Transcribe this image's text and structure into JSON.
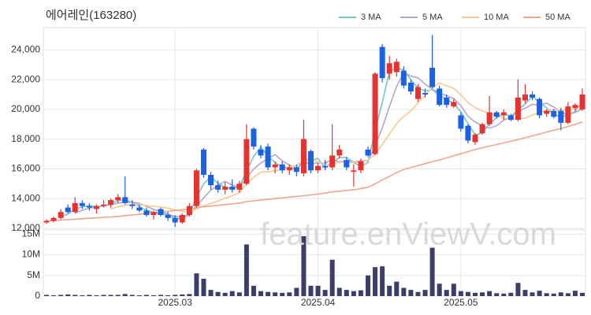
{
  "chart_data": {
    "type": "candlestick",
    "title": "에어레인(163280)",
    "watermark": "feature.enViewV.com",
    "categories": [
      null,
      null,
      null,
      null,
      null,
      null,
      null,
      null,
      null,
      null,
      null,
      null,
      null,
      null,
      null,
      null,
      null,
      null,
      "2025.03",
      null,
      null,
      null,
      null,
      null,
      null,
      null,
      null,
      null,
      null,
      null,
      null,
      null,
      null,
      null,
      null,
      null,
      null,
      null,
      "2025.04",
      null,
      null,
      null,
      null,
      null,
      null,
      null,
      null,
      null,
      null,
      null,
      null,
      null,
      null,
      null,
      null,
      null,
      null,
      null,
      "2025.05",
      null,
      null,
      null,
      null,
      null,
      null,
      null,
      null,
      null,
      null,
      null,
      null,
      null,
      null,
      null,
      null,
      null
    ],
    "open": [
      12400,
      12500,
      12700,
      13400,
      13100,
      13700,
      13500,
      13300,
      13500,
      13600,
      13900,
      14100,
      13600,
      13400,
      13200,
      12900,
      13300,
      12900,
      12700,
      12400,
      12900,
      13500,
      17300,
      15600,
      14900,
      14600,
      14800,
      14600,
      15000,
      18700,
      17300,
      17500,
      16100,
      16300,
      15900,
      16100,
      15700,
      17200,
      15900,
      16200,
      16100,
      16900,
      16600,
      15800,
      15900,
      17300,
      17000,
      24200,
      22400,
      22500,
      22600,
      21800,
      20700,
      21100,
      22800,
      21400,
      20800,
      20200,
      19600,
      18900,
      17800,
      18400,
      19000,
      19800,
      19600,
      19600,
      19300,
      20600,
      21000,
      20700,
      19700,
      19900,
      19900,
      19100,
      20100,
      20000
    ],
    "high": [
      12600,
      12800,
      13300,
      13600,
      14100,
      13900,
      13700,
      13600,
      13900,
      14000,
      14300,
      15500,
      13900,
      13600,
      13400,
      13200,
      13400,
      13100,
      12900,
      13000,
      13700,
      16000,
      17400,
      15800,
      15200,
      15100,
      15300,
      15200,
      19000,
      18800,
      17600,
      17700,
      16500,
      16500,
      16300,
      16300,
      19300,
      17300,
      16400,
      16600,
      19000,
      17600,
      16800,
      16300,
      16700,
      17500,
      22500,
      24400,
      23600,
      23400,
      22900,
      22000,
      21700,
      21400,
      25000,
      21600,
      21000,
      20700,
      19800,
      19000,
      18400,
      19100,
      20900,
      19900,
      20000,
      19700,
      22000,
      21700,
      21200,
      20800,
      20000,
      20000,
      20100,
      20500,
      20400,
      21400
    ],
    "low": [
      12300,
      12400,
      12600,
      13000,
      13000,
      13300,
      13200,
      13000,
      13400,
      13400,
      13700,
      13600,
      13300,
      13100,
      12800,
      12600,
      12800,
      12500,
      12100,
      12300,
      12800,
      13400,
      15400,
      14600,
      14400,
      14300,
      14400,
      14400,
      14900,
      17300,
      16700,
      15900,
      15700,
      15700,
      15600,
      15500,
      15500,
      15700,
      15700,
      15900,
      15900,
      16700,
      15900,
      14800,
      15700,
      16800,
      16900,
      21800,
      22000,
      22200,
      21400,
      21000,
      20500,
      20800,
      21400,
      20200,
      20100,
      20100,
      18500,
      17700,
      17600,
      18300,
      18900,
      19400,
      19300,
      19200,
      19200,
      20400,
      20600,
      19400,
      19500,
      19400,
      18600,
      19000,
      19900,
      19900
    ],
    "close": [
      12500,
      12700,
      13100,
      13100,
      13700,
      13500,
      13400,
      13500,
      13600,
      13900,
      14100,
      13700,
      13500,
      13200,
      12900,
      13100,
      12900,
      12700,
      12400,
      12900,
      13500,
      15900,
      15600,
      14900,
      14600,
      14800,
      14600,
      15000,
      18000,
      17500,
      16900,
      16100,
      16300,
      15900,
      16100,
      15800,
      18000,
      15900,
      16200,
      16100,
      16900,
      17300,
      16100,
      15900,
      16500,
      16900,
      22400,
      22100,
      23100,
      23200,
      21600,
      21200,
      21500,
      21000,
      21500,
      20300,
      20300,
      20500,
      18700,
      17900,
      18300,
      19000,
      19800,
      19500,
      19800,
      19300,
      20800,
      21000,
      20800,
      19600,
      19900,
      19500,
      19100,
      20200,
      20300,
      21000
    ],
    "up_color": "#e8322e",
    "down_color": "#1a62e5",
    "ma": [
      {
        "name": "3 MA",
        "color": "#72c7c7",
        "values": [
          null,
          null,
          12767,
          12967,
          13300,
          13433,
          13533,
          13467,
          13500,
          13667,
          13867,
          13900,
          13767,
          13467,
          13200,
          13067,
          12967,
          12900,
          12667,
          12667,
          12933,
          14100,
          15000,
          15467,
          15033,
          14767,
          14667,
          14800,
          15867,
          16833,
          17467,
          16833,
          16433,
          16100,
          16100,
          15933,
          16633,
          16567,
          16700,
          16067,
          16400,
          16767,
          16767,
          16433,
          16167,
          16433,
          18600,
          20467,
          22533,
          22800,
          22633,
          22000,
          21433,
          21233,
          21333,
          20933,
          20700,
          20367,
          19833,
          19033,
          18300,
          18400,
          19033,
          19433,
          19700,
          19533,
          19967,
          20367,
          20867,
          20467,
          20100,
          19667,
          19500,
          19600,
          19867,
          20500
        ]
      },
      {
        "name": "5 MA",
        "color": "#b4a3d3",
        "values": [
          null,
          null,
          null,
          null,
          13020,
          13220,
          13360,
          13440,
          13540,
          13580,
          13700,
          13760,
          13760,
          13680,
          13480,
          13280,
          13120,
          12960,
          12800,
          12800,
          12880,
          13480,
          14060,
          14560,
          14900,
          15160,
          14900,
          14780,
          15400,
          15980,
          16400,
          16700,
          16960,
          16540,
          16260,
          16040,
          16420,
          16340,
          16400,
          16400,
          16620,
          16480,
          16520,
          16460,
          16540,
          16540,
          17560,
          18760,
          20200,
          21540,
          22480,
          22240,
          22120,
          21700,
          21360,
          21100,
          20920,
          20720,
          20260,
          19540,
          19140,
          18880,
          18740,
          18900,
          19280,
          19480,
          19840,
          20080,
          20340,
          20300,
          20420,
          20160,
          19780,
          19660,
          19800,
          20020
        ]
      },
      {
        "name": "10 MA",
        "color": "#f5c990",
        "values": [
          null,
          null,
          null,
          null,
          null,
          null,
          null,
          null,
          null,
          13300,
          13460,
          13560,
          13600,
          13610,
          13530,
          13490,
          13440,
          13360,
          13240,
          13140,
          13080,
          13300,
          13510,
          13680,
          13850,
          14020,
          14190,
          14420,
          14980,
          15440,
          15780,
          15800,
          15870,
          15970,
          16120,
          16220,
          16560,
          16650,
          16470,
          16330,
          16330,
          16450,
          16430,
          16430,
          16470,
          16580,
          17020,
          17640,
          18330,
          19040,
          19510,
          19900,
          20440,
          20950,
          21450,
          21790,
          21580,
          21420,
          20980,
          20450,
          20120,
          19900,
          19730,
          19580,
          19410,
          19310,
          19360,
          19410,
          19620,
          19790,
          19950,
          20000,
          19930,
          20000,
          20050,
          20220
        ]
      },
      {
        "name": "50 MA",
        "color": "#f4a58e",
        "values": [
          12500,
          12530,
          12560,
          12590,
          12620,
          12650,
          12680,
          12710,
          12740,
          12770,
          12800,
          12850,
          12900,
          12950,
          13000,
          13050,
          13100,
          13150,
          13200,
          13250,
          13300,
          13400,
          13450,
          13500,
          13550,
          13600,
          13650,
          13700,
          13800,
          13850,
          13900,
          13950,
          14000,
          14050,
          14100,
          14150,
          14200,
          14250,
          14300,
          14380,
          14450,
          14500,
          14550,
          14600,
          14680,
          14770,
          15000,
          15250,
          15500,
          15750,
          15960,
          16100,
          16220,
          16350,
          16480,
          16600,
          16740,
          16880,
          17020,
          17160,
          17300,
          17420,
          17530,
          17640,
          17750,
          17860,
          17970,
          18100,
          18220,
          18350,
          18480,
          18600,
          18720,
          18850,
          19000,
          19150
        ]
      }
    ],
    "ylim": [
      12000,
      25500
    ],
    "yticks": [
      {
        "value": 12000,
        "label": "12,000"
      },
      {
        "value": 14000,
        "label": "14,000"
      },
      {
        "value": 16000,
        "label": "16,000"
      },
      {
        "value": 18000,
        "label": "18,000"
      },
      {
        "value": 20000,
        "label": "20,000"
      },
      {
        "value": 22000,
        "label": "22,000"
      },
      {
        "value": 24000,
        "label": "24,000"
      }
    ],
    "volume": {
      "color": "#3c3d6b",
      "values": [
        300000,
        200000,
        300000,
        400000,
        300000,
        200000,
        300000,
        200000,
        300000,
        300000,
        300000,
        500000,
        300000,
        200000,
        300000,
        200000,
        300000,
        200000,
        300000,
        400000,
        500000,
        5500000,
        4200000,
        1500000,
        1000000,
        800000,
        1200000,
        900000,
        12500000,
        2500000,
        1200000,
        1000000,
        900000,
        800000,
        900000,
        2000000,
        14500000,
        2500000,
        2500000,
        1500000,
        8800000,
        2000000,
        1500000,
        1200000,
        1400000,
        5000000,
        7000000,
        7200000,
        2500000,
        3500000,
        2000000,
        1500000,
        1000000,
        1500000,
        11700000,
        3000000,
        1500000,
        3000000,
        1200000,
        1000000,
        800000,
        900000,
        1200000,
        700000,
        600000,
        800000,
        3200000,
        1500000,
        900000,
        1300000,
        700000,
        600000,
        900000,
        700000,
        1300000,
        800000
      ],
      "ylim": [
        0,
        16000000
      ],
      "yticks": [
        {
          "value": 0,
          "label": "0"
        },
        {
          "value": 5000000,
          "label": "5M"
        },
        {
          "value": 10000000,
          "label": "10M"
        },
        {
          "value": 15000000,
          "label": "15M"
        }
      ]
    },
    "grid": true
  }
}
